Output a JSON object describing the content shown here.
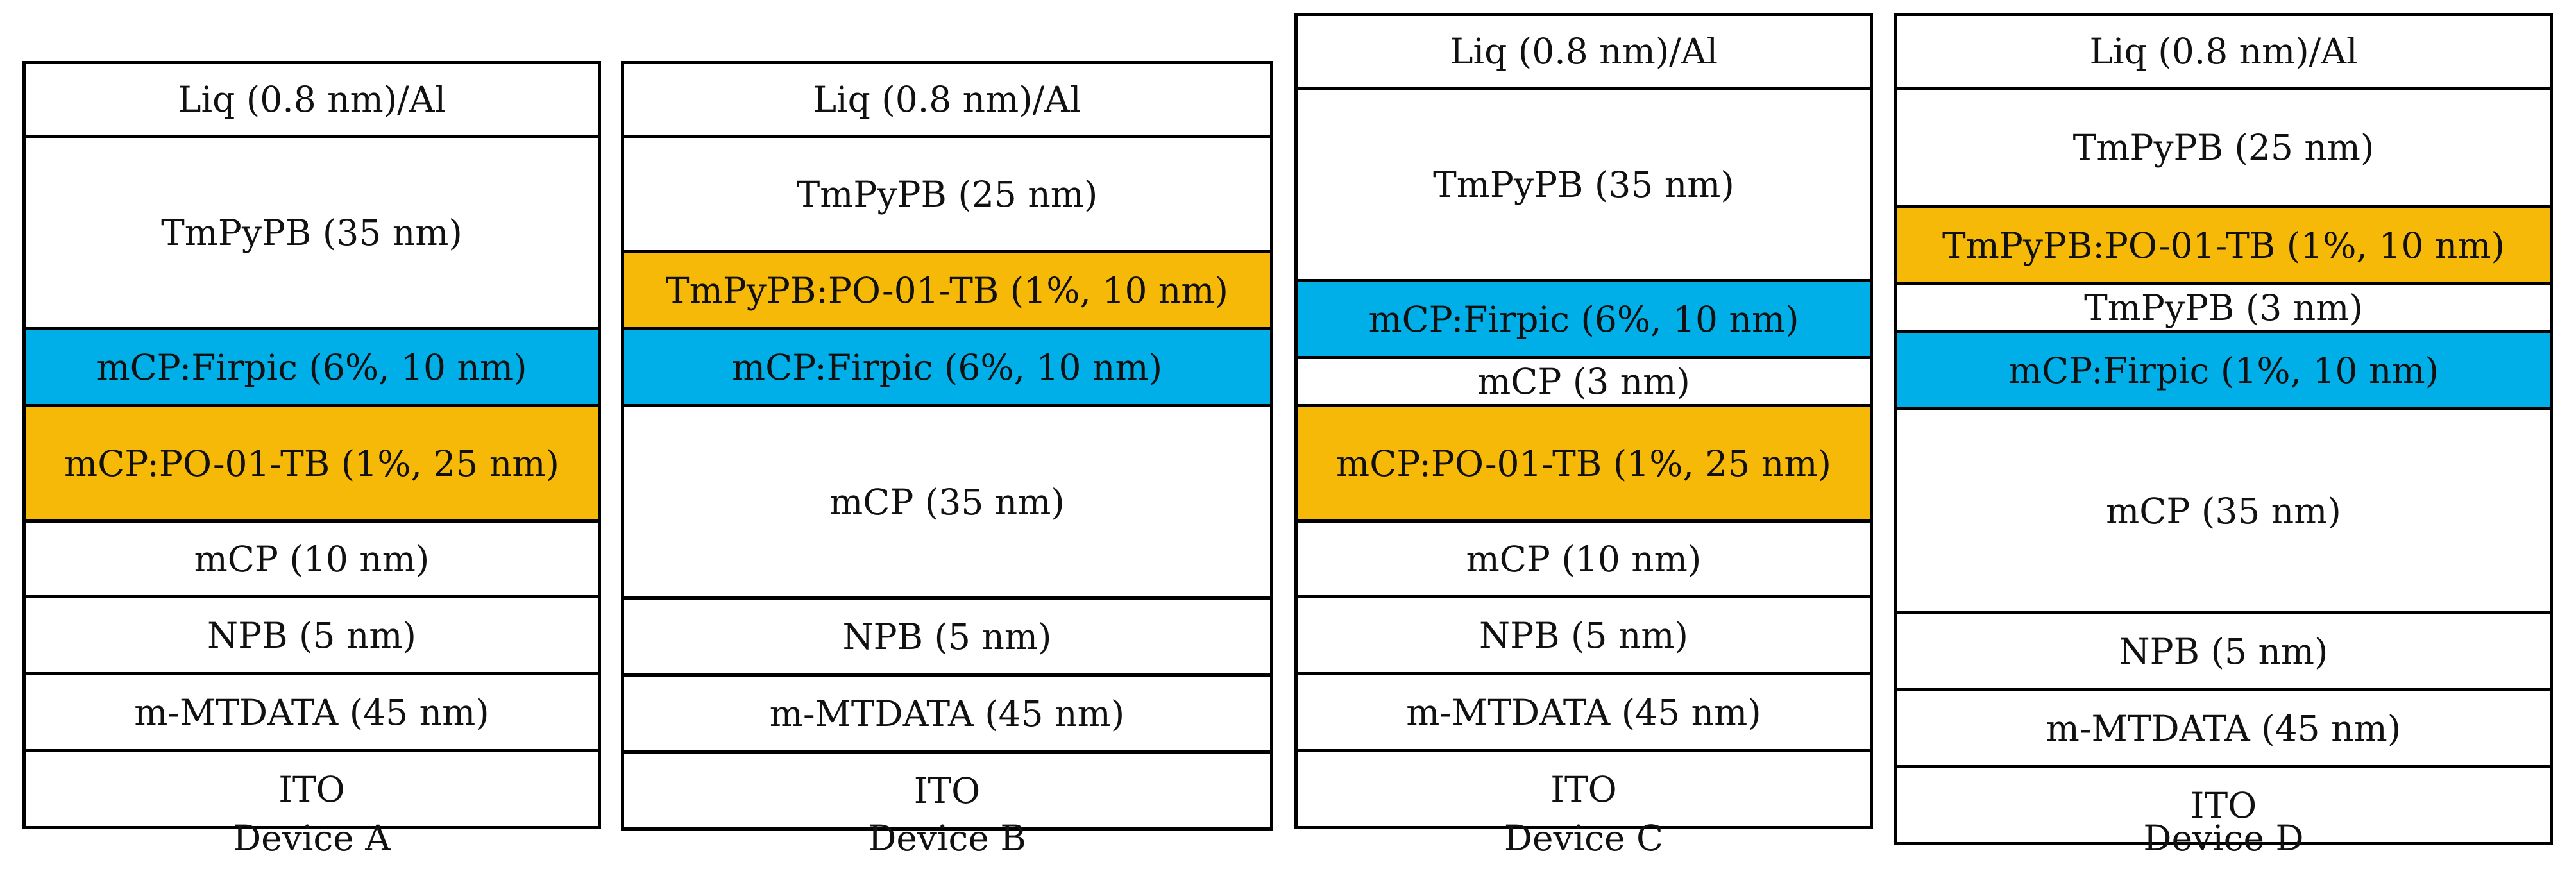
{
  "colors": {
    "plain": "#ffffff",
    "blue": "#00aee8",
    "orange": "#f7b908",
    "border": "#000000"
  },
  "devices": [
    {
      "label": "Device A",
      "layers": [
        {
          "text": "Liq (0.8 nm)/Al",
          "fill": "plain"
        },
        {
          "text": "TmPyPB (35 nm)",
          "fill": "plain"
        },
        {
          "text": "mCP:Firpic (6%, 10 nm)",
          "fill": "blue"
        },
        {
          "text": "mCP:PO-01-TB (1%, 25 nm)",
          "fill": "orange"
        },
        {
          "text": "mCP (10 nm)",
          "fill": "plain"
        },
        {
          "text": "NPB (5 nm)",
          "fill": "plain"
        },
        {
          "text": "m-MTDATA (45 nm)",
          "fill": "plain"
        },
        {
          "text": "ITO",
          "fill": "plain"
        }
      ]
    },
    {
      "label": "Device B",
      "layers": [
        {
          "text": "Liq (0.8 nm)/Al",
          "fill": "plain"
        },
        {
          "text": "TmPyPB (25 nm)",
          "fill": "plain"
        },
        {
          "text": "TmPyPB:PO-01-TB (1%, 10 nm)",
          "fill": "orange"
        },
        {
          "text": "mCP:Firpic (6%, 10 nm)",
          "fill": "blue"
        },
        {
          "text": "mCP (35 nm)",
          "fill": "plain"
        },
        {
          "text": "NPB (5 nm)",
          "fill": "plain"
        },
        {
          "text": "m-MTDATA (45 nm)",
          "fill": "plain"
        },
        {
          "text": "ITO",
          "fill": "plain"
        }
      ]
    },
    {
      "label": "Device C",
      "layers": [
        {
          "text": "Liq (0.8 nm)/Al",
          "fill": "plain"
        },
        {
          "text": "TmPyPB (35 nm)",
          "fill": "plain"
        },
        {
          "text": "mCP:Firpic (6%, 10 nm)",
          "fill": "blue"
        },
        {
          "text": "mCP (3 nm)",
          "fill": "plain"
        },
        {
          "text": "mCP:PO-01-TB (1%, 25 nm)",
          "fill": "orange"
        },
        {
          "text": "mCP (10 nm)",
          "fill": "plain"
        },
        {
          "text": "NPB (5 nm)",
          "fill": "plain"
        },
        {
          "text": "m-MTDATA (45 nm)",
          "fill": "plain"
        },
        {
          "text": "ITO",
          "fill": "plain"
        }
      ]
    },
    {
      "label": "Device D",
      "layers": [
        {
          "text": "Liq (0.8 nm)/Al",
          "fill": "plain"
        },
        {
          "text": "TmPyPB (25 nm)",
          "fill": "plain"
        },
        {
          "text": "TmPyPB:PO-01-TB (1%, 10 nm)",
          "fill": "orange"
        },
        {
          "text": "TmPyPB (3 nm)",
          "fill": "plain"
        },
        {
          "text": "mCP:Firpic (1%, 10 nm)",
          "fill": "blue"
        },
        {
          "text": "mCP (35 nm)",
          "fill": "plain"
        },
        {
          "text": "NPB (5 nm)",
          "fill": "plain"
        },
        {
          "text": "m-MTDATA (45 nm)",
          "fill": "plain"
        },
        {
          "text": "ITO",
          "fill": "plain"
        }
      ]
    }
  ]
}
